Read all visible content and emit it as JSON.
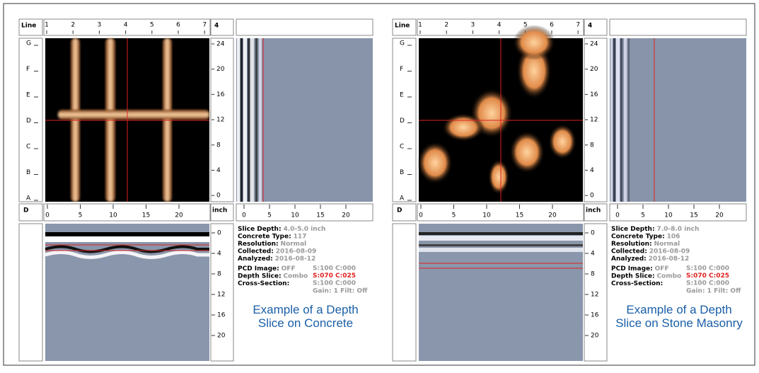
{
  "panels": [
    {
      "corner_top": "Line",
      "top_ticks": [
        1,
        2,
        3,
        4,
        5,
        6,
        7
      ],
      "depth_box": "4",
      "row_labels": [
        "G",
        "F",
        "E",
        "D",
        "C",
        "B",
        "A"
      ],
      "right_ticks": [
        24,
        20,
        16,
        12,
        8,
        4,
        0
      ],
      "corner_bottom": "D",
      "x_ticks": [
        0,
        5,
        10,
        15,
        20
      ],
      "unit": "inch",
      "side_x_ticks": [
        0,
        5,
        10,
        15,
        20
      ],
      "depth_ticks": [
        0,
        4,
        8,
        12,
        16,
        20
      ],
      "info": [
        {
          "label": "Slice Depth:",
          "value": "4.0-5.0 inch"
        },
        {
          "label": "Concrete Type:",
          "value": "117"
        },
        {
          "label": "Resolution:",
          "value": "Normal"
        },
        {
          "label": "Collected:",
          "value": "2016-08-09"
        },
        {
          "label": "Analyzed:",
          "value": "2016-08-12"
        }
      ],
      "settings": [
        {
          "label": "PCD Image:",
          "value": "OFF",
          "params": "S:100 C:000"
        },
        {
          "label": "Depth Slice:",
          "value": "Combo",
          "params": "S:070 C:025"
        },
        {
          "label": "Cross-Section:",
          "params": "S:100 C:000"
        }
      ],
      "gain": "Gain: 1 Filt: Off",
      "caption": "Example of a Depth Slice on Concrete"
    },
    {
      "corner_top": "Line",
      "top_ticks": [
        1,
        2,
        3,
        4,
        5,
        6,
        7
      ],
      "depth_box": "4",
      "row_labels": [
        "G",
        "F",
        "E",
        "D",
        "C",
        "B",
        "A"
      ],
      "right_ticks": [
        24,
        20,
        16,
        12,
        8,
        4,
        0
      ],
      "corner_bottom": "D",
      "x_ticks": [
        0,
        5,
        10,
        15,
        20
      ],
      "unit": "inch",
      "side_x_ticks": [
        0,
        5,
        10,
        15,
        20
      ],
      "depth_ticks": [
        0,
        4,
        8,
        12,
        16,
        20
      ],
      "info": [
        {
          "label": "Slice Depth:",
          "value": "7.0-8.0 inch"
        },
        {
          "label": "Concrete Type:",
          "value": "106"
        },
        {
          "label": "Resolution:",
          "value": "Normal"
        },
        {
          "label": "Collected:",
          "value": "2016-08-09"
        },
        {
          "label": "Analyzed:",
          "value": "2016-08-12"
        }
      ],
      "settings": [
        {
          "label": "PCD Image:",
          "value": "OFF",
          "params": "S:100 C:000"
        },
        {
          "label": "Depth Slice:",
          "value": "Combo",
          "params": "S:070 C:025"
        },
        {
          "label": "Cross-Section:",
          "params": "S:100 C:000"
        }
      ],
      "gain": "Gain: 1 Filt: Off",
      "caption": "Example of a Depth Slice on Stone Masonry"
    }
  ]
}
